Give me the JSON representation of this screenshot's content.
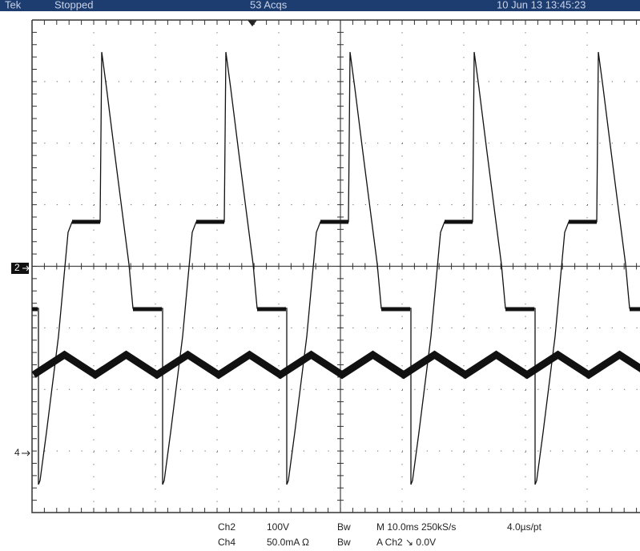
{
  "header": {
    "brand": "Tek",
    "status": "Stopped",
    "acquisitions": "53 Acqs",
    "timestamp": "10 Jun 13 13:45:23"
  },
  "markers": {
    "ch2": "2",
    "ch4": "4"
  },
  "readout": {
    "rows": [
      [
        "Ch2",
        "100V",
        "Bw",
        "M 10.0ms 250kS/s",
        "4.0µs/pt"
      ],
      [
        "Ch4",
        "50.0mA  Ω",
        "Bw",
        "A  Ch2  ↘  0.0V"
      ]
    ]
  }
}
